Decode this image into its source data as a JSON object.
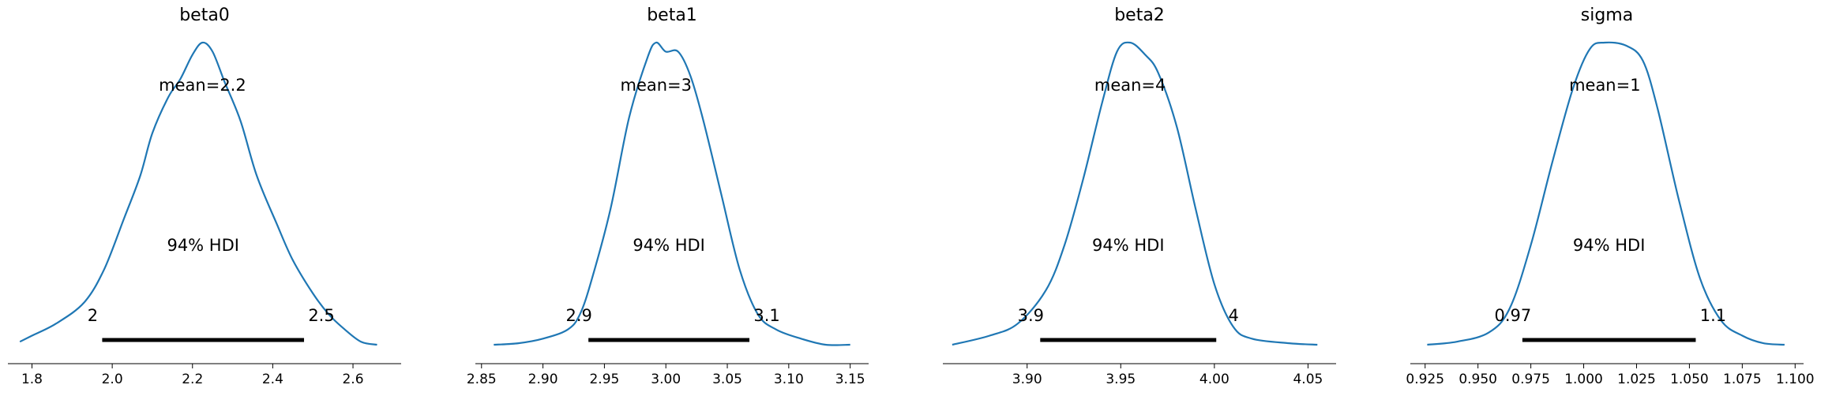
{
  "figure": {
    "colors": {
      "density": "#1f77b4",
      "hdi_bar": "#000000",
      "axis": "#000000",
      "background": "#ffffff"
    }
  },
  "chart_data": [
    {
      "type": "line",
      "title": "beta0",
      "xlabel": "",
      "ylabel": "",
      "xlim": [
        1.74,
        2.72
      ],
      "grid": false,
      "xticks": [
        1.8,
        2.0,
        2.2,
        2.4,
        2.6
      ],
      "xtick_labels": [
        "1.8",
        "2.0",
        "2.2",
        "2.4",
        "2.6"
      ],
      "mean_label": "mean=2.2",
      "hdi_label": "94% HDI",
      "hdi": [
        1.975,
        2.478
      ],
      "hdi_labels": [
        "2",
        "2.5"
      ],
      "x": [
        1.77,
        1.8,
        1.86,
        1.93,
        1.98,
        2.03,
        2.07,
        2.1,
        2.14,
        2.17,
        2.2,
        2.225,
        2.25,
        2.28,
        2.32,
        2.36,
        2.41,
        2.45,
        2.5,
        2.54,
        2.58,
        2.62,
        2.66
      ],
      "density": [
        0.01,
        0.03,
        0.07,
        0.14,
        0.25,
        0.42,
        0.56,
        0.7,
        0.82,
        0.88,
        0.96,
        1.0,
        0.97,
        0.87,
        0.74,
        0.56,
        0.4,
        0.28,
        0.17,
        0.1,
        0.05,
        0.01,
        0.0
      ]
    },
    {
      "type": "line",
      "title": "beta1",
      "xlabel": "",
      "ylabel": "",
      "xlim": [
        2.845,
        3.165
      ],
      "grid": false,
      "xticks": [
        2.85,
        2.9,
        2.95,
        3.0,
        3.05,
        3.1,
        3.15
      ],
      "xtick_labels": [
        "2.85",
        "2.90",
        "2.95",
        "3.00",
        "3.05",
        "3.10",
        "3.15"
      ],
      "mean_label": "mean=3",
      "hdi_label": "94% HDI",
      "hdi": [
        2.937,
        3.068
      ],
      "hdi_labels": [
        "2.9",
        "3.1"
      ],
      "x": [
        2.86,
        2.88,
        2.9,
        2.92,
        2.93,
        2.94,
        2.955,
        2.97,
        2.985,
        2.992,
        3.0,
        3.01,
        3.02,
        3.03,
        3.045,
        3.06,
        3.075,
        3.09,
        3.11,
        3.13,
        3.15
      ],
      "density": [
        0.0,
        0.005,
        0.02,
        0.05,
        0.1,
        0.22,
        0.45,
        0.75,
        0.95,
        1.0,
        0.97,
        0.97,
        0.89,
        0.75,
        0.5,
        0.25,
        0.1,
        0.05,
        0.02,
        0.0,
        0.0
      ]
    },
    {
      "type": "line",
      "title": "beta2",
      "xlabel": "",
      "ylabel": "",
      "xlim": [
        3.855,
        4.065
      ],
      "grid": false,
      "xticks": [
        3.9,
        3.95,
        4.0,
        4.05
      ],
      "xtick_labels": [
        "3.90",
        "3.95",
        "4.00",
        "4.05"
      ],
      "mean_label": "mean=4",
      "hdi_label": "94% HDI",
      "hdi": [
        3.907,
        4.001
      ],
      "hdi_labels": [
        "3.9",
        "4"
      ],
      "x": [
        3.86,
        3.88,
        3.895,
        3.91,
        3.92,
        3.93,
        3.94,
        3.948,
        3.955,
        3.963,
        3.97,
        3.98,
        3.99,
        4.0,
        4.01,
        4.02,
        4.04,
        4.055
      ],
      "density": [
        0.0,
        0.03,
        0.07,
        0.18,
        0.33,
        0.55,
        0.8,
        0.97,
        1.0,
        0.96,
        0.9,
        0.72,
        0.45,
        0.2,
        0.06,
        0.02,
        0.005,
        0.0
      ]
    },
    {
      "type": "line",
      "title": "sigma",
      "xlabel": "",
      "ylabel": "",
      "xlim": [
        0.918,
        1.104
      ],
      "grid": false,
      "xticks": [
        0.925,
        0.95,
        0.975,
        1.0,
        1.025,
        1.05,
        1.075,
        1.1
      ],
      "xtick_labels": [
        "0.925",
        "0.950",
        "0.975",
        "1.000",
        "1.025",
        "1.050",
        "1.075",
        "1.100"
      ],
      "mean_label": "mean=1",
      "hdi_label": "94% HDI",
      "hdi": [
        0.971,
        1.053
      ],
      "hdi_labels": [
        "0.97",
        "1.1"
      ],
      "x": [
        0.926,
        0.94,
        0.955,
        0.965,
        0.975,
        0.985,
        0.995,
        1.003,
        1.01,
        1.02,
        1.028,
        1.035,
        1.045,
        1.055,
        1.065,
        1.075,
        1.085,
        1.095
      ],
      "density": [
        0.0,
        0.01,
        0.04,
        0.12,
        0.33,
        0.6,
        0.85,
        0.98,
        1.0,
        0.99,
        0.94,
        0.78,
        0.48,
        0.22,
        0.08,
        0.03,
        0.005,
        0.0
      ]
    }
  ]
}
